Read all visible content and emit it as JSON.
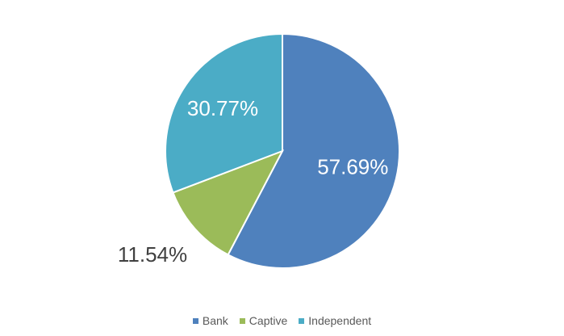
{
  "chart_data": {
    "type": "pie",
    "categories": [
      "Bank",
      "Captive",
      "Independent"
    ],
    "values": [
      57.69,
      11.54,
      30.77
    ],
    "labels": [
      "57.69%",
      "11.54%",
      "30.77%"
    ],
    "colors": [
      "#4F81BD",
      "#9BBB59",
      "#4BACC6"
    ],
    "label_colors": [
      "#ffffff",
      "#404040",
      "#ffffff"
    ],
    "legend_position": "bottom",
    "start_angle": "12 o'clock, clockwise"
  }
}
